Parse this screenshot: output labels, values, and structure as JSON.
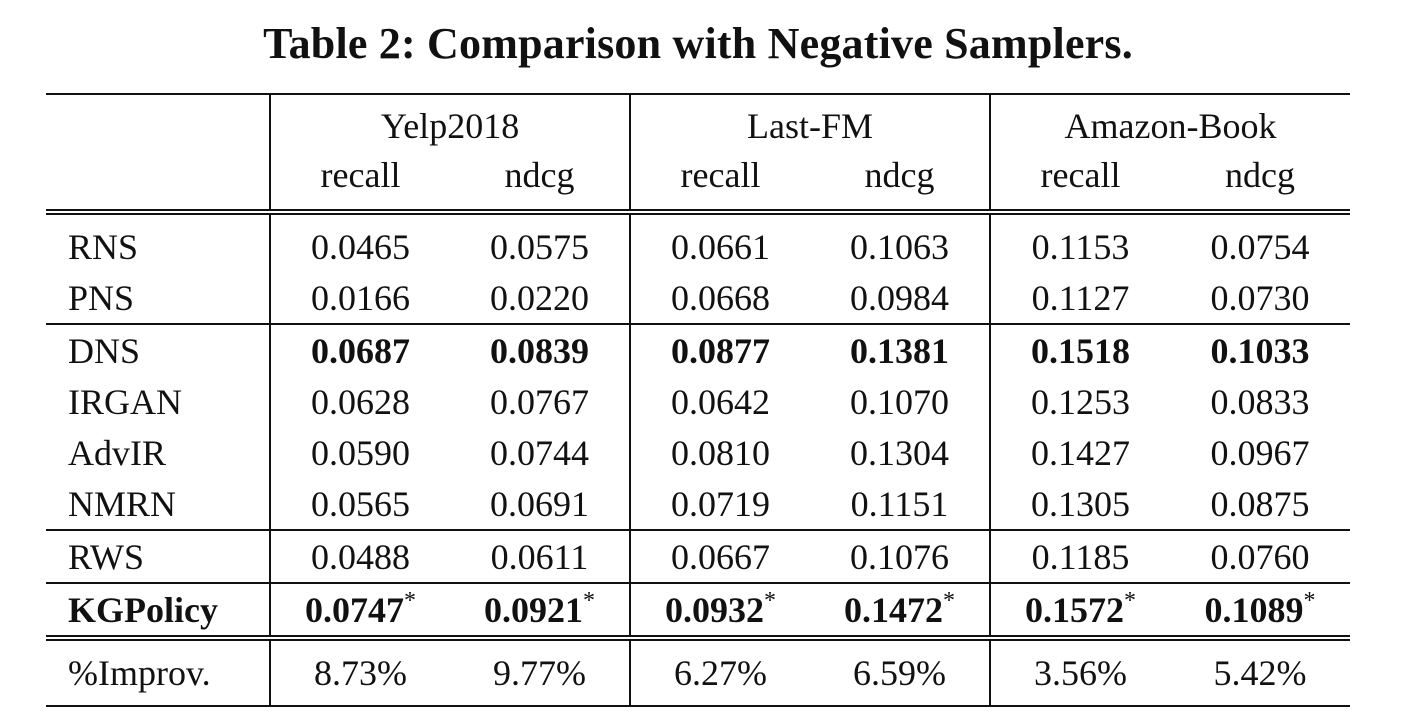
{
  "caption": "Table 2: Comparison with Negative Samplers.",
  "datasets": [
    "Yelp2018",
    "Last-FM",
    "Amazon-Book"
  ],
  "metrics": [
    "recall",
    "ndcg",
    "recall",
    "ndcg",
    "recall",
    "ndcg"
  ],
  "rows": [
    {
      "method": "RNS",
      "values": [
        "0.0465",
        "0.0575",
        "0.0661",
        "0.1063",
        "0.1153",
        "0.0754"
      ]
    },
    {
      "method": "PNS",
      "values": [
        "0.0166",
        "0.0220",
        "0.0668",
        "0.0984",
        "0.1127",
        "0.0730"
      ]
    },
    {
      "method": "DNS",
      "values": [
        "0.0687",
        "0.0839",
        "0.0877",
        "0.1381",
        "0.1518",
        "0.1033"
      ],
      "bold_values": true
    },
    {
      "method": "IRGAN",
      "values": [
        "0.0628",
        "0.0767",
        "0.0642",
        "0.1070",
        "0.1253",
        "0.0833"
      ]
    },
    {
      "method": "AdvIR",
      "values": [
        "0.0590",
        "0.0744",
        "0.0810",
        "0.1304",
        "0.1427",
        "0.0967"
      ]
    },
    {
      "method": "NMRN",
      "values": [
        "0.0565",
        "0.0691",
        "0.0719",
        "0.1151",
        "0.1305",
        "0.0875"
      ]
    },
    {
      "method": "RWS",
      "values": [
        "0.0488",
        "0.0611",
        "0.0667",
        "0.1076",
        "0.1185",
        "0.0760"
      ]
    },
    {
      "method": "KGPolicy",
      "values": [
        "0.0747",
        "0.0921",
        "0.0932",
        "0.1472",
        "0.1572",
        "0.1089"
      ],
      "bold_values": true,
      "bold_method": true,
      "significance_mark": "*"
    }
  ],
  "improvement": {
    "label": "%Improv.",
    "values": [
      "8.73%",
      "9.77%",
      "6.27%",
      "6.59%",
      "3.56%",
      "5.42%"
    ]
  }
}
